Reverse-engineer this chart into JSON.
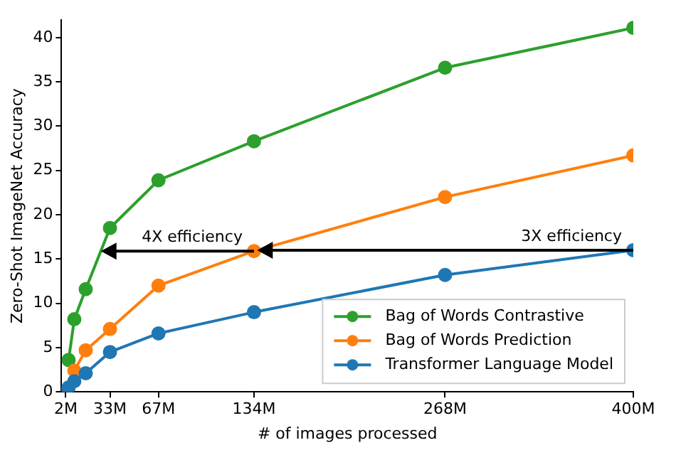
{
  "chart_data": {
    "type": "line",
    "xlabel": "# of images processed",
    "ylabel": "Zero-Shot ImageNet Accuracy",
    "x": [
      2,
      4,
      8,
      16,
      33,
      67,
      134,
      268,
      400
    ],
    "xlim": [
      -1,
      400
    ],
    "xticks": [
      {
        "value": 2,
        "label": "2M"
      },
      {
        "value": 33,
        "label": "33M"
      },
      {
        "value": 67,
        "label": "67M"
      },
      {
        "value": 134,
        "label": "134M"
      },
      {
        "value": 268,
        "label": "268M"
      },
      {
        "value": 400,
        "label": "400M"
      }
    ],
    "ylim": [
      0,
      42
    ],
    "yticks": [
      0,
      5,
      10,
      15,
      20,
      25,
      30,
      35,
      40
    ],
    "series": [
      {
        "name": "Bag of Words Contrastive",
        "color": "#2ca02c",
        "values": [
          null,
          3.6,
          8.2,
          11.6,
          18.5,
          23.9,
          28.3,
          36.6,
          41.1
        ]
      },
      {
        "name": "Bag of Words Prediction",
        "color": "#ff7f0e",
        "values": [
          null,
          null,
          2.4,
          4.7,
          7.1,
          12.0,
          15.9,
          22.0,
          26.7
        ]
      },
      {
        "name": "Transformer Language Model",
        "color": "#1f77b4",
        "values": [
          0.1,
          0.5,
          1.2,
          2.1,
          4.5,
          6.6,
          9.0,
          13.2,
          16.0
        ]
      }
    ],
    "annotations": [
      {
        "text": "4X efficiency",
        "x": 134,
        "y": 15.9
      },
      {
        "text": "3X efficiency",
        "x": 400,
        "y": 16.0
      }
    ],
    "grid": false,
    "legend": "bottom right",
    "marker": "circle",
    "line_style": "solid"
  }
}
